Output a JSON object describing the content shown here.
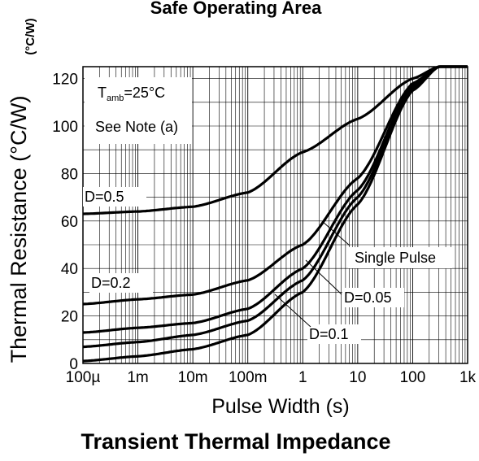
{
  "top_title": "Safe Operating Area",
  "chart_data": {
    "type": "line",
    "title": "Transient Thermal Impedance",
    "xlabel": "Pulse Width (s)",
    "ylabel": "Thermal Resistance (°C/W)",
    "unit_label": "(°C/W)",
    "x_scale": "log",
    "xlim": [
      0.0001,
      1000
    ],
    "ylim": [
      0,
      125
    ],
    "grid": true,
    "x_ticks": [
      {
        "value": 0.0001,
        "label": "100µ"
      },
      {
        "value": 0.001,
        "label": "1m"
      },
      {
        "value": 0.01,
        "label": "10m"
      },
      {
        "value": 0.1,
        "label": "100m"
      },
      {
        "value": 1,
        "label": "1"
      },
      {
        "value": 10,
        "label": "10"
      },
      {
        "value": 100,
        "label": "100"
      },
      {
        "value": 1000,
        "label": "1k"
      }
    ],
    "y_ticks": [
      0,
      20,
      40,
      60,
      80,
      100,
      120
    ],
    "series": [
      {
        "name": "D=0.5",
        "x": [
          0.0001,
          0.001,
          0.01,
          0.1,
          1,
          10,
          100,
          300,
          1000
        ],
        "y": [
          63,
          64,
          66,
          72,
          89,
          103,
          120,
          125,
          125
        ]
      },
      {
        "name": "D=0.2",
        "x": [
          0.0001,
          0.001,
          0.01,
          0.1,
          1,
          10,
          100,
          300,
          1000
        ],
        "y": [
          25,
          27,
          29,
          35,
          50,
          78,
          118,
          125,
          125
        ]
      },
      {
        "name": "",
        "x": [
          0.0001,
          0.001,
          0.01,
          0.1,
          1,
          10,
          100,
          300,
          1000
        ],
        "y": [
          13,
          15,
          17,
          23,
          40,
          73,
          117,
          125,
          125
        ]
      },
      {
        "name": "D=0.1",
        "x": [
          0.0001,
          0.001,
          0.01,
          0.1,
          1,
          10,
          100,
          300,
          1000
        ],
        "y": [
          7,
          9,
          12,
          18,
          35,
          70,
          116,
          125,
          125
        ]
      },
      {
        "name": "D=0.05",
        "x": [
          0.0001,
          0.001,
          0.01,
          0.1,
          1,
          10,
          100,
          300,
          1000
        ],
        "y": [
          1,
          3,
          6,
          12,
          30,
          67,
          115,
          125,
          125
        ]
      }
    ],
    "annotations": {
      "tamb_main": "T",
      "tamb_sub": "amb",
      "tamb_rest": "=25°C",
      "note": "See Note (a)",
      "d05": "D=0.5",
      "d02": "D=0.2",
      "single_pulse": "Single Pulse",
      "d005": "D=0.05",
      "d01": "D=0.1"
    }
  }
}
